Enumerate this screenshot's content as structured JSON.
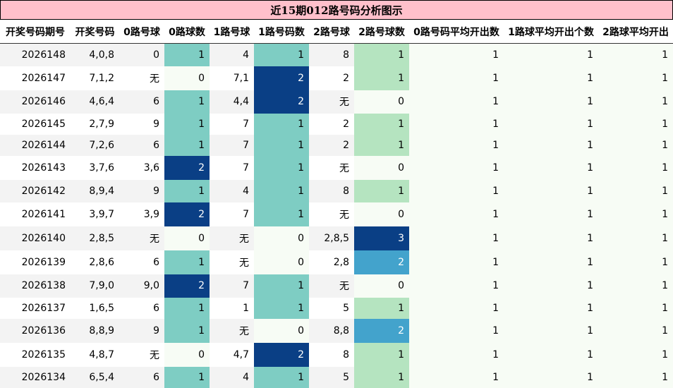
{
  "title": "近15期012路号码分析图示",
  "headers": [
    "开奖号码期号",
    "开奖号码",
    "0路号球",
    "0路球数",
    "1路号球",
    "1路号码数",
    "2路号球",
    "2路号球数",
    "0路号码平均开出数",
    "1路球平均开出个数",
    "2路球平均开出"
  ],
  "rows": [
    {
      "period": "2026148",
      "number": "4,0,8",
      "r0": "0",
      "r0n": "1",
      "r1": "4",
      "r1n": "1",
      "r2": "8",
      "r2n": "1",
      "a0": "1",
      "a1": "1",
      "a2": "1"
    },
    {
      "period": "2026147",
      "number": "7,1,2",
      "r0": "无",
      "r0n": "0",
      "r1": "7,1",
      "r1n": "2",
      "r2": "2",
      "r2n": "1",
      "a0": "1",
      "a1": "1",
      "a2": "1"
    },
    {
      "period": "2026146",
      "number": "4,6,4",
      "r0": "6",
      "r0n": "1",
      "r1": "4,4",
      "r1n": "2",
      "r2": "无",
      "r2n": "0",
      "a0": "1",
      "a1": "1",
      "a2": "1"
    },
    {
      "period": "2026145",
      "number": "2,7,9",
      "r0": "9",
      "r0n": "1",
      "r1": "7",
      "r1n": "1",
      "r2": "2",
      "r2n": "1",
      "a0": "1",
      "a1": "1",
      "a2": "1"
    },
    {
      "period": "2026144",
      "number": "7,2,6",
      "r0": "6",
      "r0n": "1",
      "r1": "7",
      "r1n": "1",
      "r2": "2",
      "r2n": "1",
      "a0": "1",
      "a1": "1",
      "a2": "1"
    },
    {
      "period": "2026143",
      "number": "3,7,6",
      "r0": "3,6",
      "r0n": "2",
      "r1": "7",
      "r1n": "1",
      "r2": "无",
      "r2n": "0",
      "a0": "1",
      "a1": "1",
      "a2": "1"
    },
    {
      "period": "2026142",
      "number": "8,9,4",
      "r0": "9",
      "r0n": "1",
      "r1": "4",
      "r1n": "1",
      "r2": "8",
      "r2n": "1",
      "a0": "1",
      "a1": "1",
      "a2": "1"
    },
    {
      "period": "2026141",
      "number": "3,9,7",
      "r0": "3,9",
      "r0n": "2",
      "r1": "7",
      "r1n": "1",
      "r2": "无",
      "r2n": "0",
      "a0": "1",
      "a1": "1",
      "a2": "1"
    },
    {
      "period": "2026140",
      "number": "2,8,5",
      "r0": "无",
      "r0n": "0",
      "r1": "无",
      "r1n": "0",
      "r2": "2,8,5",
      "r2n": "3",
      "a0": "1",
      "a1": "1",
      "a2": "1"
    },
    {
      "period": "2026139",
      "number": "2,8,6",
      "r0": "6",
      "r0n": "1",
      "r1": "无",
      "r1n": "0",
      "r2": "2,8",
      "r2n": "2",
      "a0": "1",
      "a1": "1",
      "a2": "1"
    },
    {
      "period": "2026138",
      "number": "7,9,0",
      "r0": "9,0",
      "r0n": "2",
      "r1": "7",
      "r1n": "1",
      "r2": "无",
      "r2n": "0",
      "a0": "1",
      "a1": "1",
      "a2": "1"
    },
    {
      "period": "2026137",
      "number": "1,6,5",
      "r0": "6",
      "r0n": "1",
      "r1": "1",
      "r1n": "1",
      "r2": "5",
      "r2n": "1",
      "a0": "1",
      "a1": "1",
      "a2": "1"
    },
    {
      "period": "2026136",
      "number": "8,8,9",
      "r0": "9",
      "r0n": "1",
      "r1": "无",
      "r1n": "0",
      "r2": "8,8",
      "r2n": "2",
      "a0": "1",
      "a1": "1",
      "a2": "1"
    },
    {
      "period": "2026135",
      "number": "4,8,7",
      "r0": "无",
      "r0n": "0",
      "r1": "4,7",
      "r1n": "2",
      "r2": "8",
      "r2n": "1",
      "a0": "1",
      "a1": "1",
      "a2": "1"
    },
    {
      "period": "2026134",
      "number": "6,5,4",
      "r0": "6",
      "r0n": "1",
      "r1": "4",
      "r1n": "1",
      "r2": "5",
      "r2n": "1",
      "a0": "1",
      "a1": "1",
      "a2": "1"
    }
  ]
}
